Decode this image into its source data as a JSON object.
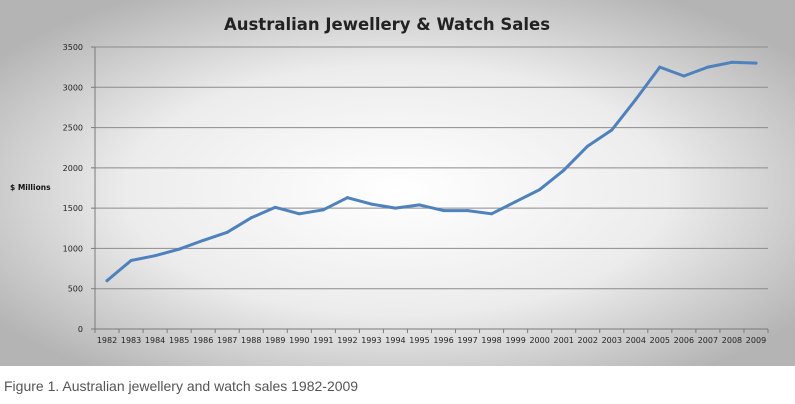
{
  "chart_data": {
    "type": "line",
    "title": "Australian Jewellery & Watch Sales",
    "xlabel": "",
    "ylabel": "$ Millions",
    "ylim": [
      0,
      3500
    ],
    "yticks": [
      "0",
      "500",
      "1000",
      "1500",
      "2000",
      "2500",
      "3000",
      "3500"
    ],
    "grid": true,
    "legend": "none",
    "categories": [
      "1982",
      "1983",
      "1984",
      "1985",
      "1986",
      "1987",
      "1988",
      "1989",
      "1990",
      "1991",
      "1992",
      "1993",
      "1994",
      "1995",
      "1996",
      "1997",
      "1998",
      "1999",
      "2000",
      "2001",
      "2002",
      "2003",
      "2004",
      "2005",
      "2006",
      "2007",
      "2008",
      "2009"
    ],
    "series": [
      {
        "values": [
          600,
          850,
          910,
          990,
          1100,
          1200,
          1380,
          1510,
          1430,
          1480,
          1630,
          1550,
          1500,
          1540,
          1470,
          1470,
          1430,
          1580,
          1730,
          1970,
          2270,
          2470,
          2850,
          3250,
          3140,
          3250,
          3310,
          3300
        ],
        "color": "#4f81bd"
      }
    ],
    "colors": {
      "line": "#4f81bd",
      "grid": "#8c8c8c",
      "background_center": "#ffffff",
      "background_edge": "#b4b4b4"
    }
  },
  "caption": "Figure 1. Australian jewellery and watch sales 1982-2009"
}
